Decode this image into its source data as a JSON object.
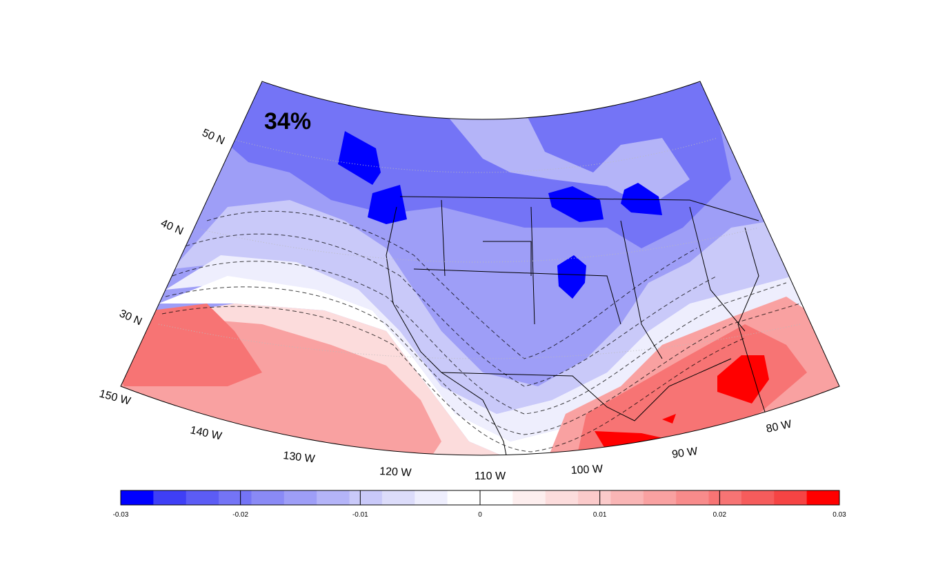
{
  "map": {
    "annotation": "34%",
    "projection": "lambert-conic-conus",
    "lat_labels": [
      "50 N",
      "40 N",
      "30 N"
    ],
    "lon_labels": [
      "150 W",
      "140 W",
      "130 W",
      "120 W",
      "110 W",
      "100 W",
      "90 W",
      "80 W"
    ],
    "colorbar": {
      "min": -0.03,
      "max": 0.03,
      "tick_labels": [
        "-0.03",
        "-0.02",
        "-0.01",
        "0",
        "0.01",
        "0.02",
        "0.03"
      ],
      "colors": [
        "#0000ff",
        "#3f3ff6",
        "#5c5cf5",
        "#7474f6",
        "#8a8af6",
        "#9e9ef7",
        "#b4b4f8",
        "#c9c9f9",
        "#dcdcfa",
        "#eeeefd",
        "#ffffff",
        "#ffffff",
        "#fdeeee",
        "#fcdcdc",
        "#fbcaca",
        "#f9b5b5",
        "#f9a1a1",
        "#f88b8b",
        "#f77474",
        "#f65c5c",
        "#f64444",
        "#ff0000"
      ]
    }
  }
}
